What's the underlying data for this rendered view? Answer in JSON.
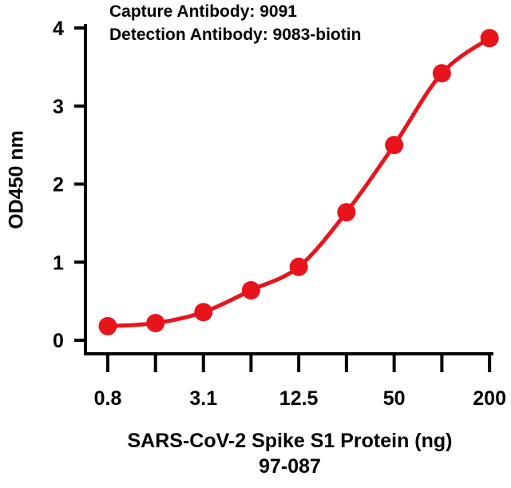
{
  "chart_data": {
    "type": "line",
    "annotations": [
      "Capture Antibody: 9091",
      "Detection Antibody: 9083-biotin"
    ],
    "xlabel": "SARS-CoV-2 Spike S1 Protein (ng)",
    "xlabel_line2": "97-087",
    "ylabel": "OD450 nm",
    "x_scale": "log2",
    "x_values": [
      0.78,
      1.56,
      3.13,
      6.25,
      12.5,
      25,
      50,
      100,
      200
    ],
    "x_tick_labels": [
      "0.8",
      "",
      "3.1",
      "",
      "12.5",
      "",
      "50",
      "",
      "200"
    ],
    "ylim": [
      0,
      4
    ],
    "y_ticks": [
      0,
      1,
      2,
      3,
      4
    ],
    "y_tick_labels": [
      "0",
      "1",
      "2",
      "3",
      "4"
    ],
    "grid": false,
    "series": [
      {
        "color": "#e8141b",
        "values": [
          0.18,
          0.22,
          0.36,
          0.64,
          0.94,
          1.64,
          2.5,
          3.42,
          3.87
        ]
      }
    ]
  }
}
